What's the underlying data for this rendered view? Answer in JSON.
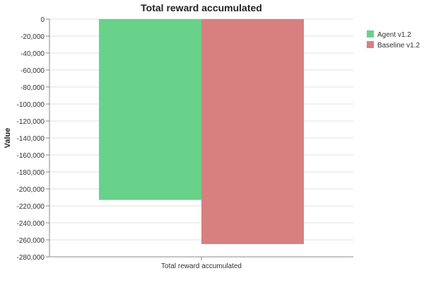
{
  "chart_data": {
    "type": "bar",
    "title": "Total reward accumulated",
    "xlabel": "",
    "ylabel": "Value",
    "categories": [
      "Total reward accumulated"
    ],
    "series": [
      {
        "name": "Agent v1.2",
        "values": [
          -213000
        ],
        "color": "#68d18a"
      },
      {
        "name": "Baseline v1.2",
        "values": [
          -265000
        ],
        "color": "#d88080"
      }
    ],
    "ylim": [
      -280000,
      0
    ],
    "ytick_step": 20000,
    "grid": true,
    "legend_position": "top-right"
  }
}
